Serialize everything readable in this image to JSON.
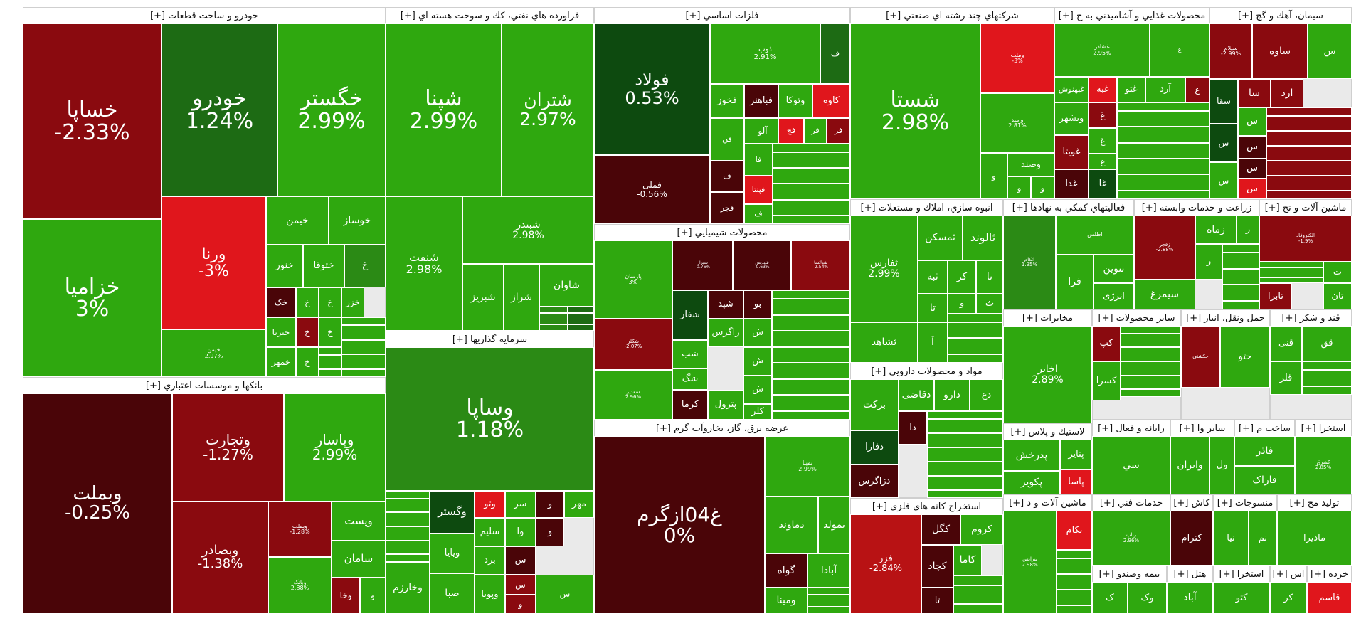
{
  "chart_data": {
    "type": "treemap",
    "colors": {
      "up_strong": "#2fa80f",
      "up_medium": "#2b8a15",
      "up_dark": "#1d6b14",
      "up_deep": "#0d4a0f",
      "down_light": "#e0161c",
      "down_medium": "#b81214",
      "down_strong": "#8a0a0f",
      "down_deep": "#4a0508",
      "neutral": "#f0f0f0"
    },
    "sectors": [
      {
        "name": "خودرو و ساخت قطعات [+]",
        "tiles": [
          {
            "symbol": "خساپا",
            "change": "-2.33%"
          },
          {
            "symbol": "خودرو",
            "change": "1.24%"
          },
          {
            "symbol": "خگستر",
            "change": "2.99%"
          },
          {
            "symbol": "خزامیا",
            "change": "3%"
          },
          {
            "symbol": "ورنا",
            "change": "-3%"
          },
          {
            "symbol": "خیمن",
            "change": ""
          },
          {
            "symbol": "خوساز",
            "change": ""
          },
          {
            "symbol": "خنور",
            "change": ""
          },
          {
            "symbol": "ختوقا",
            "change": ""
          },
          {
            "symbol": "خ",
            "change": ""
          },
          {
            "symbol": "خک",
            "change": ""
          },
          {
            "symbol": "خ",
            "change": ""
          },
          {
            "symbol": "خ",
            "change": ""
          },
          {
            "symbol": "خزر",
            "change": ""
          },
          {
            "symbol": "خبرنا",
            "change": ""
          },
          {
            "symbol": "خ",
            "change": ""
          },
          {
            "symbol": "خ",
            "change": ""
          },
          {
            "symbol": "خمهر",
            "change": ""
          },
          {
            "symbol": "خ",
            "change": ""
          },
          {
            "symbol": "خپمن",
            "change": "2.97%"
          }
        ]
      },
      {
        "name": "فراورده هاي نفتي، كك و سوخت هسته اي [+]",
        "tiles": [
          {
            "symbol": "شپنا",
            "change": "2.99%"
          },
          {
            "symbol": "شتران",
            "change": "2.97%"
          },
          {
            "symbol": "شنفت",
            "change": "2.98%"
          },
          {
            "symbol": "شبندر",
            "change": "2.98%"
          },
          {
            "symbol": "شاوان",
            "change": ""
          },
          {
            "symbol": "شبریز",
            "change": ""
          },
          {
            "symbol": "شراز",
            "change": ""
          }
        ]
      },
      {
        "name": "فلزات اساسي [+]",
        "tiles": [
          {
            "symbol": "فولاد",
            "change": "0.53%"
          },
          {
            "symbol": "ذوب",
            "change": "2.91%"
          },
          {
            "symbol": "ف",
            "change": ""
          },
          {
            "symbol": "فخوز",
            "change": ""
          },
          {
            "symbol": "فباهنر",
            "change": ""
          },
          {
            "symbol": "وتوکا",
            "change": ""
          },
          {
            "symbol": "کاوه",
            "change": ""
          },
          {
            "symbol": "فملی",
            "change": "-0.56%"
          },
          {
            "symbol": "آلو",
            "change": ""
          },
          {
            "symbol": "فج",
            "change": ""
          },
          {
            "symbol": "فر",
            "change": ""
          },
          {
            "symbol": "فر",
            "change": ""
          },
          {
            "symbol": "فن",
            "change": ""
          },
          {
            "symbol": "فا",
            "change": ""
          },
          {
            "symbol": "ف",
            "change": ""
          },
          {
            "symbol": "فپنتا",
            "change": ""
          },
          {
            "symbol": "فجر",
            "change": ""
          },
          {
            "symbol": "ف",
            "change": ""
          }
        ]
      },
      {
        "name": "شركتهاي چند رشته اي صنعتي [+]",
        "tiles": [
          {
            "symbol": "شستا",
            "change": "2.98%"
          },
          {
            "symbol": "وملت",
            "change": "-3%"
          },
          {
            "symbol": "وامید",
            "change": "2.81%"
          },
          {
            "symbol": "وصند",
            "change": ""
          },
          {
            "symbol": "و",
            "change": ""
          },
          {
            "symbol": "و",
            "change": ""
          },
          {
            "symbol": "و",
            "change": ""
          }
        ]
      },
      {
        "name": "محصولات غذايي و آشاميدني به ج [+]",
        "tiles": [
          {
            "symbol": "غشاذر",
            "change": "2.95%"
          },
          {
            "symbol": "غ",
            "change": ""
          },
          {
            "symbol": "غبهنوش",
            "change": ""
          },
          {
            "symbol": "ویشهر",
            "change": ""
          },
          {
            "symbol": "غبه",
            "change": ""
          },
          {
            "symbol": "غتو",
            "change": ""
          },
          {
            "symbol": "آرد",
            "change": ""
          },
          {
            "symbol": "غ",
            "change": ""
          },
          {
            "symbol": "غویتا",
            "change": ""
          },
          {
            "symbol": "غدا",
            "change": ""
          },
          {
            "symbol": "غا",
            "change": ""
          },
          {
            "symbol": "غ",
            "change": ""
          },
          {
            "symbol": "غ",
            "change": ""
          },
          {
            "symbol": "غ",
            "change": ""
          }
        ]
      },
      {
        "name": "سيمان، آهك و گچ [+]",
        "tiles": [
          {
            "symbol": "سیلام",
            "change": "-2.99%"
          },
          {
            "symbol": "ساوه",
            "change": ""
          },
          {
            "symbol": "س",
            "change": ""
          },
          {
            "symbol": "سقا",
            "change": ""
          },
          {
            "symbol": "سا",
            "change": ""
          },
          {
            "symbol": "ارد",
            "change": ""
          },
          {
            "symbol": "س",
            "change": ""
          },
          {
            "symbol": "س",
            "change": ""
          },
          {
            "symbol": "س",
            "change": ""
          },
          {
            "symbol": "س",
            "change": ""
          },
          {
            "symbol": "س",
            "change": ""
          },
          {
            "symbol": "س",
            "change": ""
          }
        ]
      },
      {
        "name": "بانكها و موسسات اعتباري [+]",
        "tiles": [
          {
            "symbol": "وبملت",
            "change": "-0.25%"
          },
          {
            "symbol": "وتجارت",
            "change": "-1.27%"
          },
          {
            "symbol": "وپاسار",
            "change": "2.99%"
          },
          {
            "symbol": "وبصادر",
            "change": "-1.38%"
          },
          {
            "symbol": "وبملت",
            "change": "-1.28%"
          },
          {
            "symbol": "وپست",
            "change": ""
          },
          {
            "symbol": "سامان",
            "change": ""
          },
          {
            "symbol": "وبانک",
            "change": "2.88%"
          },
          {
            "symbol": "وخا",
            "change": ""
          },
          {
            "symbol": "و",
            "change": ""
          }
        ]
      },
      {
        "name": "سرمايه گذاريها [+]",
        "tiles": [
          {
            "symbol": "وساپا",
            "change": "1.18%"
          },
          {
            "symbol": "وگستر",
            "change": ""
          },
          {
            "symbol": "وتو",
            "change": ""
          },
          {
            "symbol": "سر",
            "change": ""
          },
          {
            "symbol": "و",
            "change": ""
          },
          {
            "symbol": "مهر",
            "change": ""
          },
          {
            "symbol": "سلیم",
            "change": ""
          },
          {
            "symbol": "وا",
            "change": ""
          },
          {
            "symbol": "و",
            "change": ""
          },
          {
            "symbol": "ویایا",
            "change": ""
          },
          {
            "symbol": "برد",
            "change": ""
          },
          {
            "symbol": "س",
            "change": ""
          },
          {
            "symbol": "وخارزم",
            "change": ""
          },
          {
            "symbol": "صبا",
            "change": ""
          },
          {
            "symbol": "وپویا",
            "change": ""
          },
          {
            "symbol": "س",
            "change": ""
          },
          {
            "symbol": "و",
            "change": ""
          },
          {
            "symbol": "س",
            "change": ""
          }
        ]
      },
      {
        "name": "محصولات شيميايي [+]",
        "tiles": [
          {
            "symbol": "پارسان",
            "change": "3%"
          },
          {
            "symbol": "شیراز",
            "change": "-0.76%"
          },
          {
            "symbol": "شپدیس",
            "change": "-0.63%"
          },
          {
            "symbol": "شپاکسا",
            "change": "-2.54%"
          },
          {
            "symbol": "شکلر",
            "change": "-2.07%"
          },
          {
            "symbol": "شغدیر",
            "change": "2.96%"
          },
          {
            "symbol": "شفار",
            "change": ""
          },
          {
            "symbol": "شپد",
            "change": ""
          },
          {
            "symbol": "بو",
            "change": ""
          },
          {
            "symbol": "زاگرس",
            "change": ""
          },
          {
            "symbol": "ش",
            "change": ""
          },
          {
            "symbol": "شب",
            "change": ""
          },
          {
            "symbol": "شگ",
            "change": ""
          },
          {
            "symbol": "ش",
            "change": ""
          },
          {
            "symbol": "کرما",
            "change": ""
          },
          {
            "symbol": "پترول",
            "change": ""
          },
          {
            "symbol": "ش",
            "change": ""
          },
          {
            "symbol": "کلر",
            "change": ""
          }
        ]
      },
      {
        "name": "عرضه برق، گاز، بخاروآب گرم [+]",
        "tiles": [
          {
            "symbol": "غ04ازگرم",
            "change": "0%"
          },
          {
            "symbol": "بمپنا",
            "change": "2.99%"
          },
          {
            "symbol": "بمولد",
            "change": ""
          },
          {
            "symbol": "دماوند",
            "change": ""
          },
          {
            "symbol": "گواه",
            "change": ""
          },
          {
            "symbol": "آبادا",
            "change": ""
          },
          {
            "symbol": "ومینا",
            "change": ""
          }
        ]
      },
      {
        "name": "انبوه سازي، املاك و مستغلات [+]",
        "tiles": [
          {
            "symbol": "ثفارس",
            "change": "2.99%"
          },
          {
            "symbol": "ثالوند",
            "change": ""
          },
          {
            "symbol": "ثمسکن",
            "change": ""
          },
          {
            "symbol": "ثبه",
            "change": ""
          },
          {
            "symbol": "کر",
            "change": ""
          },
          {
            "symbol": "تا",
            "change": ""
          },
          {
            "symbol": "تا",
            "change": ""
          },
          {
            "symbol": "و",
            "change": ""
          },
          {
            "symbol": "ث",
            "change": ""
          },
          {
            "symbol": "ثشاهد",
            "change": ""
          },
          {
            "symbol": "آ",
            "change": ""
          }
        ]
      },
      {
        "name": "فعاليتهاي كمكي به نهادها [+]",
        "tiles": [
          {
            "symbol": "اتکام",
            "change": "1.95%"
          },
          {
            "symbol": "اطلس",
            "change": ""
          },
          {
            "symbol": "تنوین",
            "change": ""
          },
          {
            "symbol": "فرا",
            "change": ""
          },
          {
            "symbol": "انرژی",
            "change": ""
          }
        ]
      },
      {
        "name": "زراعت و خدمات وابسته [+]",
        "tiles": [
          {
            "symbol": "زفجر",
            "change": "-2.88%"
          },
          {
            "symbol": "زماه",
            "change": ""
          },
          {
            "symbol": "ز",
            "change": ""
          },
          {
            "symbol": "ز",
            "change": ""
          },
          {
            "symbol": "سیمرغ",
            "change": ""
          }
        ]
      },
      {
        "name": "ماشين آلات و تج [+]",
        "tiles": [
          {
            "symbol": "الکتروفاد",
            "change": "-1.9%"
          },
          {
            "symbol": "ت",
            "change": ""
          },
          {
            "symbol": "تان",
            "change": ""
          },
          {
            "symbol": "تابرا",
            "change": ""
          }
        ]
      },
      {
        "name": "مخابرات [+]",
        "tiles": [
          {
            "symbol": "اخابر",
            "change": "2.89%"
          }
        ]
      },
      {
        "name": "سایر محصولات [+]",
        "tiles": [
          {
            "symbol": "کپ",
            "change": ""
          },
          {
            "symbol": "کسرا",
            "change": ""
          }
        ]
      },
      {
        "name": "حمل ونقل، انبار [+]",
        "tiles": [
          {
            "symbol": "حکشتی",
            "change": ""
          },
          {
            "symbol": "حتو",
            "change": ""
          }
        ]
      },
      {
        "name": "قند و شکر [+]",
        "tiles": [
          {
            "symbol": "قنی",
            "change": ""
          },
          {
            "symbol": "قق",
            "change": ""
          },
          {
            "symbol": "قلر",
            "change": ""
          }
        ]
      },
      {
        "name": "مواد و محصولات دارويي [+]",
        "tiles": [
          {
            "symbol": "برکت",
            "change": ""
          },
          {
            "symbol": "دقاضی",
            "change": ""
          },
          {
            "symbol": "دارو",
            "change": ""
          },
          {
            "symbol": "دع",
            "change": ""
          },
          {
            "symbol": "دا",
            "change": ""
          },
          {
            "symbol": "دفارا",
            "change": ""
          },
          {
            "symbol": "دزاگرس",
            "change": ""
          }
        ]
      },
      {
        "name": "لاستيك و پلاس [+]",
        "tiles": [
          {
            "symbol": "پتایر",
            "change": ""
          },
          {
            "symbol": "پدرخش",
            "change": ""
          },
          {
            "symbol": "پاسا",
            "change": ""
          },
          {
            "symbol": "پکویر",
            "change": ""
          }
        ]
      },
      {
        "name": "استخراج كانه هاي فلزي [+]",
        "tiles": [
          {
            "symbol": "فزر",
            "change": "-2.84%"
          },
          {
            "symbol": "کگل",
            "change": ""
          },
          {
            "symbol": "کروم",
            "change": ""
          },
          {
            "symbol": "کچاد",
            "change": ""
          },
          {
            "symbol": "کاما",
            "change": ""
          },
          {
            "symbol": "تا",
            "change": ""
          }
        ]
      },
      {
        "name": "ماشين آلات و د [+]",
        "tiles": [
          {
            "symbol": "بترانس",
            "change": "2.98%"
          },
          {
            "symbol": "بکام",
            "change": ""
          }
        ]
      },
      {
        "name": "رایانه و فعال [+]",
        "tiles": [
          {
            "symbol": "سي",
            "change": ""
          }
        ]
      },
      {
        "name": "سایر وا [+]",
        "tiles": [
          {
            "symbol": "وایران",
            "change": ""
          },
          {
            "symbol": "ول",
            "change": ""
          }
        ]
      },
      {
        "name": "ساخت م [+]",
        "tiles": [
          {
            "symbol": "فاذر",
            "change": ""
          },
          {
            "symbol": "فاراک",
            "change": ""
          }
        ]
      },
      {
        "name": "استخرا [+]",
        "tiles": [
          {
            "symbol": "کشرق",
            "change": "2.85%"
          }
        ]
      },
      {
        "name": "خدمات فني [+]",
        "tiles": [
          {
            "symbol": "رتاپ",
            "change": "2.96%"
          }
        ]
      },
      {
        "name": "كاش [+]",
        "tiles": [
          {
            "symbol": "کترام",
            "change": ""
          }
        ]
      },
      {
        "name": "منسوجات [+]",
        "tiles": [
          {
            "symbol": "نیا",
            "change": ""
          },
          {
            "symbol": "نم",
            "change": ""
          }
        ]
      },
      {
        "name": "تولید مح [+]",
        "tiles": [
          {
            "symbol": "مادیرا",
            "change": ""
          }
        ]
      },
      {
        "name": "بيمه وصندو [+]",
        "tiles": [
          {
            "symbol": "ک",
            "change": ""
          },
          {
            "symbol": "وک",
            "change": ""
          }
        ]
      },
      {
        "name": "هتل [+]",
        "tiles": [
          {
            "symbol": "آباد",
            "change": ""
          }
        ]
      },
      {
        "name": "استخرا [+]",
        "tiles": [
          {
            "symbol": "کتو",
            "change": ""
          }
        ]
      },
      {
        "name": "اس [+]",
        "tiles": [
          {
            "symbol": "کر",
            "change": ""
          }
        ]
      },
      {
        "name": "خرده [+]",
        "tiles": [
          {
            "symbol": "قاسم",
            "change": ""
          }
        ]
      },
      {
        "name": "[+]",
        "tiles": []
      },
      {
        "name": "[+]",
        "tiles": []
      },
      {
        "name": "[+]",
        "tiles": []
      }
    ]
  }
}
